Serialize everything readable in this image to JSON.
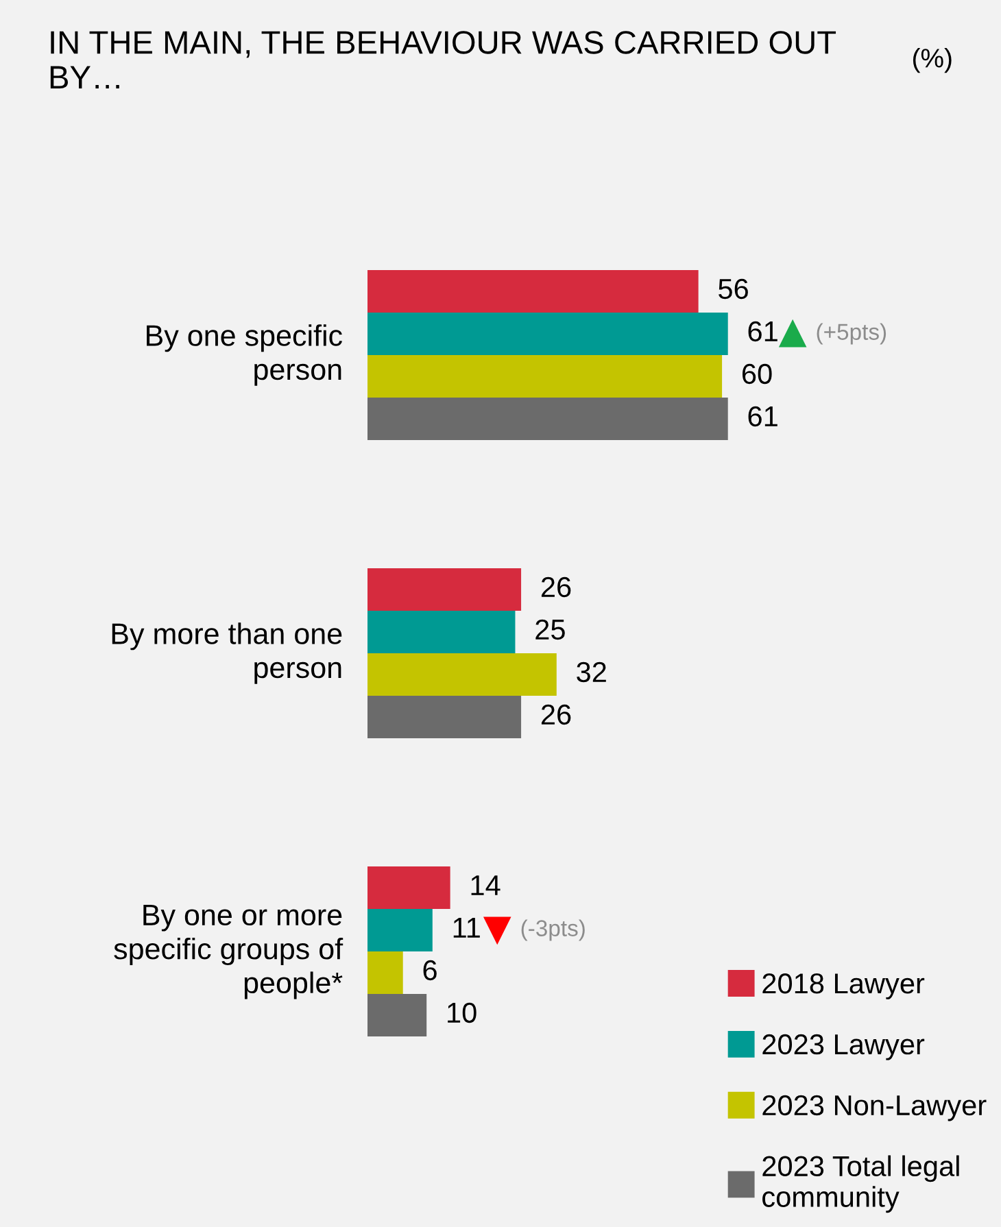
{
  "chart_data": {
    "type": "bar",
    "orientation": "horizontal",
    "title": "IN THE MAIN, THE BEHAVIOUR WAS CARRIED OUT BY…",
    "subtitle": "(%)",
    "categories": [
      "By one specific person",
      "By more than one person",
      "By one or more specific groups of people*"
    ],
    "series": [
      {
        "name": "2018 Lawyer",
        "color": "#d62b3e",
        "values": [
          56,
          26,
          14
        ]
      },
      {
        "name": "2023 Lawyer",
        "color": "#009a93",
        "values": [
          61,
          25,
          11
        ]
      },
      {
        "name": "2023 Non-Lawyer",
        "color": "#c4c400",
        "values": [
          60,
          32,
          6
        ]
      },
      {
        "name": "2023 Total legal community",
        "color": "#6b6b6b",
        "values": [
          61,
          26,
          10
        ]
      }
    ],
    "tick_labels": false,
    "data_labels": true,
    "legend": "bottom right",
    "annotations": [
      "(+5pts)",
      "(-3pts)"
    ]
  }
}
